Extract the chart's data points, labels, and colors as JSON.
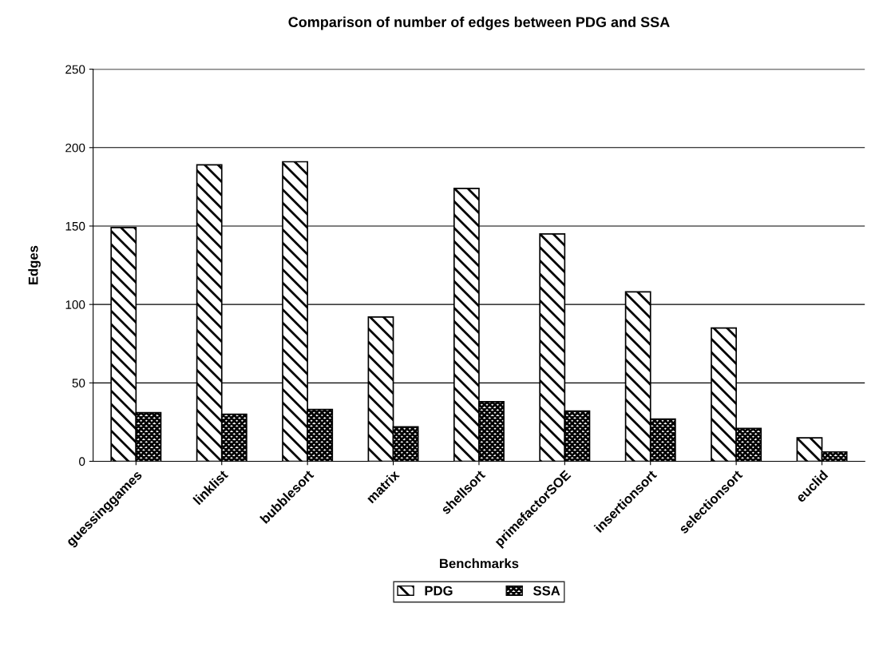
{
  "chart_data": {
    "type": "bar",
    "title": "Comparison of number of edges between PDG and SSA",
    "xlabel": "Benchmarks",
    "ylabel": "Edges",
    "categories": [
      "guessinggames",
      "linklist",
      "bubblesort",
      "matrix",
      "shellsort",
      "primefactorSOE",
      "insertionsort",
      "selectionsort",
      "euclid"
    ],
    "series": [
      {
        "name": "PDG",
        "color": "#000000",
        "values": [
          149,
          189,
          191,
          92,
          174,
          145,
          108,
          85,
          15
        ]
      },
      {
        "name": "SSA",
        "color": "#000000",
        "values": [
          31,
          30,
          33,
          22,
          38,
          32,
          27,
          21,
          6
        ]
      }
    ],
    "ylim": [
      0,
      250
    ],
    "yticks": [
      0,
      50,
      100,
      150,
      200,
      250
    ],
    "grid": "y",
    "legend": "bottom"
  }
}
